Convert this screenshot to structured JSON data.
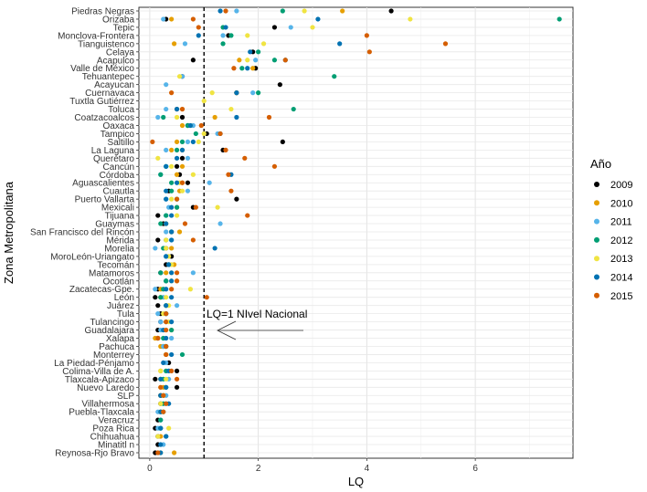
{
  "chart_data": {
    "type": "scatter",
    "xlabel": "LQ",
    "ylabel": "Zona Metropolitana",
    "xlim": [
      -0.2,
      7.8
    ],
    "xticks": [
      0,
      2,
      4,
      6
    ],
    "grid": true,
    "legend": {
      "title": "Año",
      "placement": "right",
      "entries": [
        {
          "name": "2009",
          "color": "#000000"
        },
        {
          "name": "2010",
          "color": "#E69F00"
        },
        {
          "name": "2011",
          "color": "#56B4E9"
        },
        {
          "name": "2012",
          "color": "#009E73"
        },
        {
          "name": "2013",
          "color": "#F0E442"
        },
        {
          "name": "2014",
          "color": "#0072B2"
        },
        {
          "name": "2015",
          "color": "#D55E00"
        }
      ]
    },
    "reference_line": {
      "x": 1,
      "style": "dashed",
      "label": "LQ=1 NIvel Nacional"
    },
    "categories": [
      "Piedras Negras",
      "Orizaba",
      "Tepic",
      "Monclova-Frontera",
      "Tianguistenco",
      "Celaya",
      "Acapulco",
      "Valle de México",
      "Tehuantepec",
      "Acayucan",
      "Cuernavaca",
      "Tuxtla Gutiérrez",
      "Toluca",
      "Coatzacoalcos",
      "Oaxaca",
      "Tampico",
      "Saltillo",
      "La Laguna",
      "Querétaro",
      "Cancún",
      "Córdoba",
      "Aguascalientes",
      "Cuautla",
      "Puerto Vallarta",
      "Mexicali",
      "Tijuana",
      "Guaymas",
      "San Francisco del Rincón",
      "Mérida",
      "Morelia",
      "MoroLeón-Uriangato",
      "Tecomán",
      "Matamoros",
      "Ocotlán",
      "Zacatecas-Gpe.",
      "León",
      "Juárez",
      "Tula",
      "Tulancingo",
      "Guadalajara",
      "Xalapa",
      "Pachuca",
      "Monterrey",
      "La Piedad-Pénjamo",
      "Colima-Villa de A.",
      "Tlaxcala-Apizaco",
      "Nuevo Laredo",
      "SLP",
      "Villahermosa",
      "Puebla-Tlaxcala",
      "Veracruz",
      "Poza Rica",
      "Chihuahua",
      "Minatitl n",
      "Reynosa-Rjo Bravo"
    ],
    "series": [
      {
        "name": "2009",
        "values": [
          4.45,
          0.3,
          2.3,
          1.45,
          null,
          1.9,
          0.8,
          1.95,
          0.6,
          2.4,
          1.6,
          null,
          0.5,
          0.6,
          0.7,
          1.05,
          2.45,
          1.35,
          0.6,
          0.5,
          0.55,
          0.7,
          0.35,
          1.6,
          0.8,
          0.15,
          0.25,
          0.4,
          0.15,
          0.3,
          0.4,
          0.3,
          0.2,
          0.3,
          0.15,
          0.1,
          0.15,
          0.2,
          0.2,
          0.15,
          0.15,
          0.25,
          0.3,
          0.35,
          0.5,
          0.1,
          0.5,
          0.2,
          0.2,
          0.2,
          0.15,
          0.1,
          0.15,
          0.15,
          0.1
        ]
      },
      {
        "name": "2010",
        "values": [
          3.55,
          0.4,
          null,
          null,
          0.45,
          null,
          1.65,
          1.9,
          null,
          null,
          1.6,
          null,
          0.6,
          1.2,
          0.6,
          null,
          0.5,
          0.4,
          null,
          0.6,
          0.5,
          0.6,
          0.55,
          null,
          0.5,
          null,
          0.3,
          0.55,
          null,
          0.4,
          null,
          0.45,
          0.3,
          0.5,
          0.2,
          0.2,
          0.3,
          null,
          null,
          0.4,
          0.1,
          0.2,
          0.3,
          null,
          0.2,
          0.2,
          0.25,
          0.2,
          null,
          null,
          null,
          null,
          0.2,
          null,
          0.45
        ]
      },
      {
        "name": "2011",
        "values": [
          1.6,
          0.25,
          2.6,
          1.35,
          0.65,
          null,
          1.95,
          null,
          0.6,
          0.3,
          1.9,
          null,
          0.3,
          0.15,
          0.8,
          1.25,
          0.7,
          0.3,
          0.7,
          0.3,
          0.2,
          1.1,
          0.7,
          0.3,
          0.35,
          0.3,
          1.3,
          0.3,
          0.4,
          0.1,
          0.3,
          null,
          0.8,
          0.3,
          0.1,
          0.25,
          0.5,
          0.15,
          0.2,
          0.2,
          0.4,
          0.25,
          null,
          0.3,
          null,
          0.35,
          null,
          0.3,
          0.3,
          0.15,
          0.2,
          0.15,
          null,
          0.25,
          null
        ]
      },
      {
        "name": "2012",
        "values": [
          2.45,
          7.55,
          1.35,
          1.5,
          1.35,
          2.0,
          2.3,
          1.7,
          3.4,
          null,
          2.0,
          null,
          2.65,
          0.25,
          0.7,
          0.85,
          0.6,
          0.5,
          null,
          0.3,
          0.2,
          0.4,
          0.4,
          0.5,
          0.5,
          0.3,
          0.2,
          null,
          0.3,
          0.25,
          null,
          0.35,
          0.2,
          0.3,
          0.25,
          0.2,
          0.3,
          0.3,
          0.3,
          0.4,
          0.25,
          0.3,
          0.6,
          null,
          0.3,
          0.25,
          0.3,
          0.25,
          0.25,
          0.25,
          0.2,
          0.2,
          0.3,
          null,
          null
        ]
      },
      {
        "name": "2013",
        "values": [
          2.85,
          4.8,
          3.0,
          1.8,
          2.1,
          null,
          1.8,
          null,
          0.55,
          null,
          1.15,
          1.0,
          1.5,
          0.5,
          0.75,
          1.0,
          0.9,
          0.6,
          0.15,
          0.4,
          0.8,
          0.55,
          0.6,
          0.4,
          1.25,
          0.5,
          0.3,
          0.4,
          0.3,
          0.3,
          0.35,
          0.4,
          0.4,
          0.4,
          0.75,
          0.3,
          0.35,
          0.25,
          0.35,
          0.3,
          0.15,
          0.3,
          0.3,
          null,
          0.2,
          0.3,
          0.2,
          0.25,
          0.2,
          0.2,
          null,
          0.35,
          0.15,
          null,
          0.2
        ]
      },
      {
        "name": "2014",
        "values": [
          1.3,
          3.1,
          1.4,
          0.9,
          3.5,
          1.85,
          2.5,
          1.8,
          null,
          null,
          1.6,
          null,
          0.5,
          1.6,
          0.75,
          1.3,
          0.8,
          0.6,
          0.5,
          0.3,
          1.5,
          0.5,
          0.3,
          0.3,
          0.4,
          0.4,
          0.3,
          0.4,
          0.4,
          1.2,
          0.3,
          0.35,
          0.4,
          0.4,
          0.3,
          0.4,
          0.3,
          0.3,
          0.4,
          0.25,
          0.3,
          0.3,
          0.4,
          0.25,
          0.35,
          0.2,
          0.3,
          0.2,
          0.35,
          0.2,
          null,
          0.2,
          0.3,
          0.2,
          0.2
        ]
      },
      {
        "name": "2015",
        "values": [
          1.4,
          0.8,
          0.9,
          4.0,
          5.45,
          4.05,
          2.5,
          1.55,
          null,
          null,
          0.4,
          null,
          0.6,
          2.2,
          0.95,
          1.3,
          0.05,
          1.4,
          1.75,
          2.3,
          1.45,
          0.6,
          1.5,
          0.5,
          0.85,
          1.8,
          0.65,
          null,
          0.8,
          null,
          null,
          null,
          0.5,
          0.5,
          0.4,
          1.05,
          null,
          0.3,
          0.3,
          0.3,
          0.15,
          0.3,
          0.3,
          null,
          0.4,
          0.5,
          0.2,
          0.25,
          0.3,
          0.25,
          null,
          null,
          null,
          null,
          0.15
        ]
      }
    ]
  }
}
